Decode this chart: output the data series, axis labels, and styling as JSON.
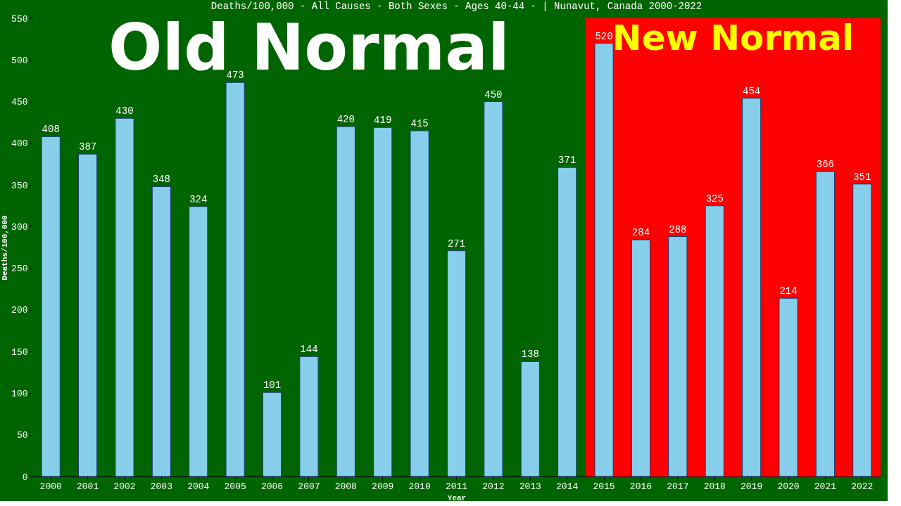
{
  "chart_data": {
    "type": "bar",
    "title": "Deaths/100,000 - All Causes - Both Sexes - Ages 40-44 -  | Nunavut, Canada 2000-2022",
    "xlabel": "Year",
    "ylabel": "Deaths/100,000",
    "categories": [
      "2000",
      "2001",
      "2002",
      "2003",
      "2004",
      "2005",
      "2006",
      "2007",
      "2008",
      "2009",
      "2010",
      "2011",
      "2012",
      "2013",
      "2014",
      "2015",
      "2016",
      "2017",
      "2018",
      "2019",
      "2020",
      "2021",
      "2022"
    ],
    "values": [
      408,
      387,
      430,
      348,
      324,
      473,
      101,
      144,
      420,
      419,
      415,
      271,
      450,
      138,
      371,
      520,
      284,
      288,
      325,
      454,
      214,
      366,
      351
    ],
    "color": "#87ceeb",
    "ylim": [
      0,
      550
    ],
    "yticks": [
      0,
      50,
      100,
      150,
      200,
      250,
      300,
      350,
      400,
      450,
      500,
      550
    ],
    "grid": false,
    "data_labels": true,
    "bands": [
      {
        "axis": "x",
        "from": "2000",
        "to": "2014",
        "label": "Old Normal",
        "color": "#006400"
      },
      {
        "axis": "x",
        "from": "2015",
        "to": "2022",
        "label": "New Normal",
        "color": "#ff0000"
      }
    ]
  }
}
